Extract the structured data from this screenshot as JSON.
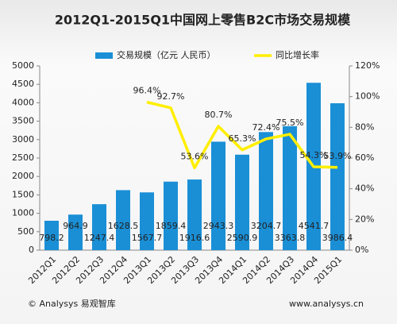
{
  "chart_data": {
    "type": "bar_line",
    "title": "2012Q1-2015Q1中国网上零售B2C市场交易规模",
    "categories": [
      "2012Q1",
      "2012Q2",
      "2012Q3",
      "2012Q4",
      "2013Q1",
      "2013Q2",
      "2013Q3",
      "2013Q4",
      "2014Q1",
      "2014Q2",
      "2014Q3",
      "2014Q4",
      "2015Q1"
    ],
    "series": [
      {
        "name": "交易规模（亿元 人民币）",
        "color": "#1a8fd6",
        "type": "bar",
        "values": [
          798.2,
          964.9,
          1247.4,
          1628.5,
          1567.7,
          1859.4,
          1916.6,
          2943.3,
          2590.9,
          3204.7,
          3363.8,
          4541.7,
          3986.4
        ]
      },
      {
        "name": "同比增长率",
        "color": "#ffee00",
        "type": "line",
        "axis": "y2",
        "values": [
          null,
          null,
          null,
          null,
          96.4,
          92.7,
          53.6,
          80.7,
          65.3,
          72.4,
          75.5,
          54.3,
          53.9
        ],
        "value_labels": [
          null,
          null,
          null,
          null,
          "96.4%",
          "92.7%",
          "53.6%",
          "80.7%",
          "65.3%",
          "72.4%",
          "75.5%",
          "54.3%",
          "53.9%"
        ]
      }
    ],
    "ylim": [
      0,
      5000
    ],
    "yticks": [
      0,
      500,
      1000,
      1500,
      2000,
      2500,
      3000,
      3500,
      4000,
      4500,
      5000
    ],
    "y2lim": [
      0,
      120
    ],
    "y2ticks": [
      {
        "value": 0,
        "label": "0%"
      },
      {
        "value": 20,
        "label": "20%"
      },
      {
        "value": 40,
        "label": "40%"
      },
      {
        "value": 60,
        "label": "60%"
      },
      {
        "value": 80,
        "label": "80%"
      },
      {
        "value": 100,
        "label": "100%"
      },
      {
        "value": 120,
        "label": "120%"
      }
    ],
    "footer_left": "© Analysys 易观智库",
    "footer_right": "www.analysys.cn"
  }
}
